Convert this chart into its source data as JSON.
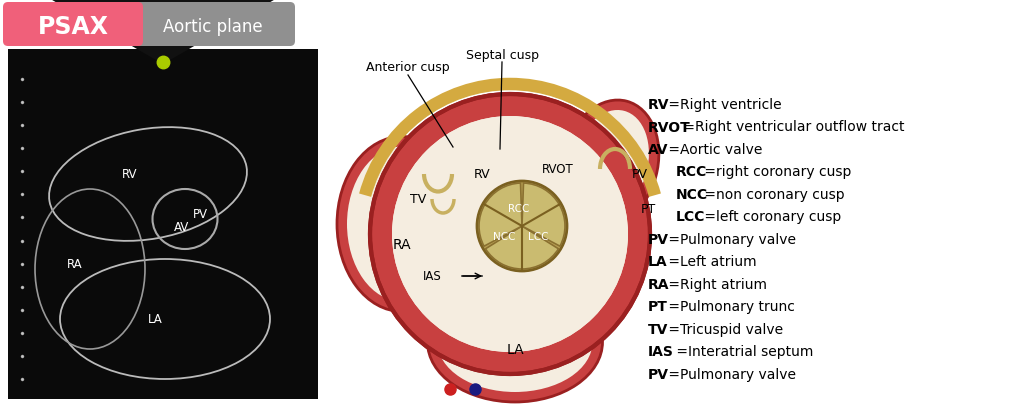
{
  "psax_label": "PSAX",
  "aortic_plane_label": "Aortic plane",
  "psax_color": "#f0607a",
  "aortic_color": "#909090",
  "legend_entries": [
    {
      "abbr": "RV",
      "full": "Right ventricle",
      "indent": false
    },
    {
      "abbr": "RVOT",
      "full": "Right ventricular outflow tract",
      "indent": false
    },
    {
      "abbr": "AV",
      "full": "Aortic valve",
      "indent": false
    },
    {
      "abbr": "RCC",
      "full": "right coronary cusp",
      "indent": true
    },
    {
      "abbr": "NCC",
      "full": "non coronary cusp",
      "indent": true
    },
    {
      "abbr": "LCC",
      "full": "left coronary cusp",
      "indent": true
    },
    {
      "abbr": "PV",
      "full": "Pulmonary valve",
      "indent": false
    },
    {
      "abbr": "LA",
      "full": "Left atrium",
      "indent": false
    },
    {
      "abbr": "RA",
      "full": "Right atrium",
      "indent": false
    },
    {
      "abbr": "PT",
      "full": "Pulmonary trunc",
      "indent": false
    },
    {
      "abbr": "TV",
      "full": "Tricuspid valve",
      "indent": false
    },
    {
      "abbr": "IAS",
      "full": "Interatrial septum",
      "indent": false
    },
    {
      "abbr": "PV",
      "full": "Pulmonary valve",
      "indent": false
    }
  ],
  "background_color": "#ffffff",
  "red_wall": "#c84040",
  "red_wall_dark": "#9a2020",
  "chamber_fill": "#f5ede0",
  "gold_fill": "#c8b060",
  "gold_dark": "#8b7030",
  "yellow_band": "#d4aa40"
}
